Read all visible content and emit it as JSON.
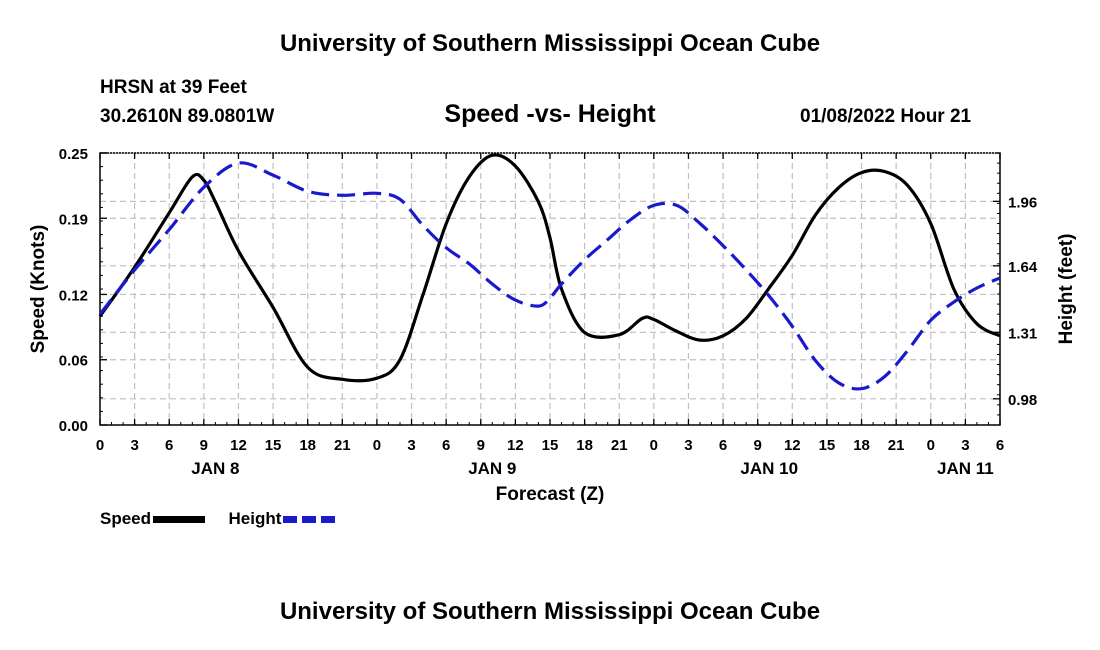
{
  "header": {
    "title": "University of Southern Mississippi Ocean Cube",
    "station": "HRSN at 39 Feet",
    "coordinates": "30.2610N  89.0801W",
    "datestamp": "01/08/2022 Hour 21",
    "footer_title": "University of Southern Mississippi Ocean Cube"
  },
  "colors": {
    "speed": "#000000",
    "height": "#1a1acc",
    "grid": "#c0c0c0"
  },
  "chart_data": {
    "type": "line",
    "title": "Speed -vs- Height",
    "xlabel": "Forecast (Z)",
    "ylabel_left": "Speed (Knots)",
    "ylabel_right": "Height (feet)",
    "x_range": [
      0,
      78
    ],
    "x_tick_step": 3,
    "x_tick_labels": [
      "0",
      "3",
      "6",
      "9",
      "12",
      "15",
      "18",
      "21",
      "0",
      "3",
      "6",
      "9",
      "12",
      "15",
      "18",
      "21",
      "0",
      "3",
      "6",
      "9",
      "12",
      "15",
      "18",
      "21",
      "0",
      "3",
      "6"
    ],
    "date_labels": [
      {
        "label": "JAN 8",
        "x": 10
      },
      {
        "label": "JAN 9",
        "x": 34
      },
      {
        "label": "JAN 10",
        "x": 58
      },
      {
        "label": "JAN 11",
        "x": 75
      }
    ],
    "y_left": {
      "range": [
        0,
        0.25
      ],
      "ticks": [
        0,
        0.06,
        0.12,
        0.19,
        0.25
      ],
      "tick_labels": [
        "0.00",
        "0.06",
        "0.12",
        "0.19",
        "0.25"
      ]
    },
    "y_right": {
      "range": [
        0.85,
        2.2
      ],
      "ticks": [
        0.98,
        1.31,
        1.64,
        1.96
      ],
      "tick_labels": [
        "0.98",
        "1.31",
        "1.64",
        "1.96"
      ]
    },
    "grid": true,
    "legend": [
      {
        "name": "Speed",
        "style": "solid"
      },
      {
        "name": "Height",
        "style": "dashed"
      }
    ],
    "series": [
      {
        "name": "Speed",
        "axis": "left",
        "style": "solid",
        "x": [
          0,
          3,
          6,
          8,
          9,
          10,
          12,
          15,
          18,
          21,
          24,
          26,
          28,
          30,
          32,
          34,
          36,
          38,
          39,
          40,
          42,
          45,
          47,
          48,
          50,
          52,
          54,
          56,
          58,
          60,
          62,
          64,
          66,
          68,
          70,
          72,
          74,
          76,
          78
        ],
        "y": [
          0.1,
          0.145,
          0.195,
          0.228,
          0.225,
          0.205,
          0.16,
          0.108,
          0.053,
          0.042,
          0.043,
          0.06,
          0.12,
          0.185,
          0.228,
          0.248,
          0.238,
          0.205,
          0.172,
          0.125,
          0.085,
          0.083,
          0.098,
          0.097,
          0.086,
          0.078,
          0.082,
          0.098,
          0.126,
          0.156,
          0.193,
          0.218,
          0.232,
          0.233,
          0.22,
          0.185,
          0.125,
          0.093,
          0.082
        ]
      },
      {
        "name": "Height",
        "axis": "right",
        "style": "dashed",
        "x": [
          0,
          3,
          6,
          9,
          12,
          15,
          18,
          21,
          24,
          26,
          28,
          30,
          32,
          34,
          36,
          38,
          39,
          40,
          42,
          44,
          46,
          48,
          50,
          52,
          54,
          56,
          58,
          60,
          62,
          64,
          66,
          68,
          70,
          72,
          74,
          76,
          78
        ],
        "y": [
          1.4,
          1.62,
          1.82,
          2.03,
          2.15,
          2.09,
          2.01,
          1.99,
          2.0,
          1.97,
          1.84,
          1.73,
          1.65,
          1.55,
          1.47,
          1.44,
          1.48,
          1.55,
          1.67,
          1.77,
          1.87,
          1.94,
          1.94,
          1.85,
          1.74,
          1.62,
          1.49,
          1.34,
          1.17,
          1.06,
          1.03,
          1.09,
          1.22,
          1.37,
          1.46,
          1.53,
          1.58
        ]
      }
    ]
  }
}
